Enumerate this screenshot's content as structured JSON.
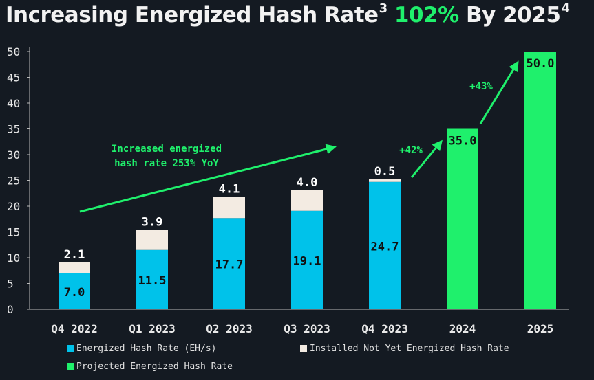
{
  "title": {
    "prefix": "Increasing Energized Hash Rate",
    "prefix_sup": "3",
    "accent": "102%",
    "suffix": "By 2025",
    "suffix_sup": "4"
  },
  "colors": {
    "energized": "#00c2ea",
    "installed": "#f3ebe2",
    "projected": "#1ff06c",
    "annotation": "#1ff06c",
    "background": "#141a22"
  },
  "legend": {
    "energized": "Energized Hash Rate (EH/s)",
    "installed": "Installed Not Yet Energized Hash Rate",
    "projected": "Projected Energized Hash Rate"
  },
  "annotations": {
    "yoy_line1": "Increased energized",
    "yoy_line2": "hash rate 253% YoY",
    "growth_2024": "+42%",
    "growth_2025": "+43%"
  },
  "chart_data": {
    "type": "bar",
    "stacked": true,
    "categories": [
      "Q4 2022",
      "Q1 2023",
      "Q2 2023",
      "Q3 2023",
      "Q4 2023",
      "2024",
      "2025"
    ],
    "series": [
      {
        "name": "Energized Hash Rate (EH/s)",
        "values": [
          7.0,
          11.5,
          17.7,
          19.1,
          24.7,
          null,
          null
        ],
        "labels": [
          "7.0",
          "11.5",
          "17.7",
          "19.1",
          "24.7",
          null,
          null
        ]
      },
      {
        "name": "Installed Not Yet Energized Hash Rate",
        "values": [
          2.1,
          3.9,
          4.1,
          4.0,
          0.5,
          null,
          null
        ],
        "labels": [
          "2.1",
          "3.9",
          "4.1",
          "4.0",
          "0.5",
          null,
          null
        ]
      },
      {
        "name": "Projected Energized Hash Rate",
        "values": [
          null,
          null,
          null,
          null,
          null,
          35.0,
          50.0
        ],
        "labels": [
          null,
          null,
          null,
          null,
          null,
          "35.0",
          "50.0"
        ]
      }
    ],
    "yticks": [
      "0",
      "5",
      "10",
      "15",
      "20",
      "25",
      "30",
      "35",
      "40",
      "45",
      "50"
    ],
    "ylim": [
      0,
      50
    ],
    "grid": false,
    "legend_position": "bottom-left"
  }
}
